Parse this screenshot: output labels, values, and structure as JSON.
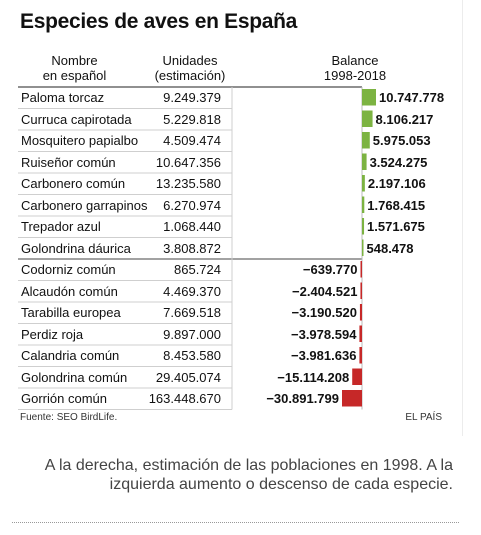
{
  "chart_data": {
    "type": "bar",
    "title": "Especies de aves en España",
    "columns": {
      "name": "Nombre\nen español",
      "units": "Unidades\n(estimación)",
      "balance": "Balance\n1998-2018"
    },
    "rows": [
      {
        "name": "Paloma torcaz",
        "units": "9.249.379",
        "balance": 10747778,
        "label": "10.747.778"
      },
      {
        "name": "Curruca capirotada",
        "units": "5.229.818",
        "balance": 8106217,
        "label": "8.106.217"
      },
      {
        "name": "Mosquitero papialbo",
        "units": "4.509.474",
        "balance": 5975053,
        "label": "5.975.053"
      },
      {
        "name": "Ruiseñor común",
        "units": "10.647.356",
        "balance": 3524275,
        "label": "3.524.275"
      },
      {
        "name": "Carbonero común",
        "units": "13.235.580",
        "balance": 2197106,
        "label": "2.197.106"
      },
      {
        "name": "Carbonero garrapinos",
        "units": "6.270.974",
        "balance": 1768415,
        "label": "1.768.415"
      },
      {
        "name": "Trepador azul",
        "units": "1.068.440",
        "balance": 1571675,
        "label": "1.571.675"
      },
      {
        "name": "Golondrina dáurica",
        "units": "3.808.872",
        "balance": 548478,
        "label": "548.478"
      },
      {
        "name": "Codorniz común",
        "units": "865.724",
        "balance": -639770,
        "label": "−639.770"
      },
      {
        "name": "Alcaudón común",
        "units": "4.469.370",
        "balance": -2404521,
        "label": "−2.404.521"
      },
      {
        "name": "Tarabilla europea",
        "units": "7.669.518",
        "balance": -3190520,
        "label": "−3.190.520"
      },
      {
        "name": "Perdiz roja",
        "units": "9.897.000",
        "balance": -3978594,
        "label": "−3.978.594"
      },
      {
        "name": "Calandria común",
        "units": "8.453.580",
        "balance": -3981636,
        "label": "−3.981.636"
      },
      {
        "name": "Golondrina común",
        "units": "29.405.074",
        "balance": -15114208,
        "label": "−15.114.208"
      },
      {
        "name": "Gorrión común",
        "units": "163.448.670",
        "balance": -30891799,
        "label": "−30.891.799"
      }
    ],
    "colors": {
      "positive": "#7cb342",
      "negative": "#c62828"
    },
    "source": "Fuente: SEO BirdLife.",
    "brand": "EL PAÍS"
  },
  "caption": "A la derecha, estimación de las poblaciones en 1998. A la izquierda aumento o descenso de cada especie."
}
